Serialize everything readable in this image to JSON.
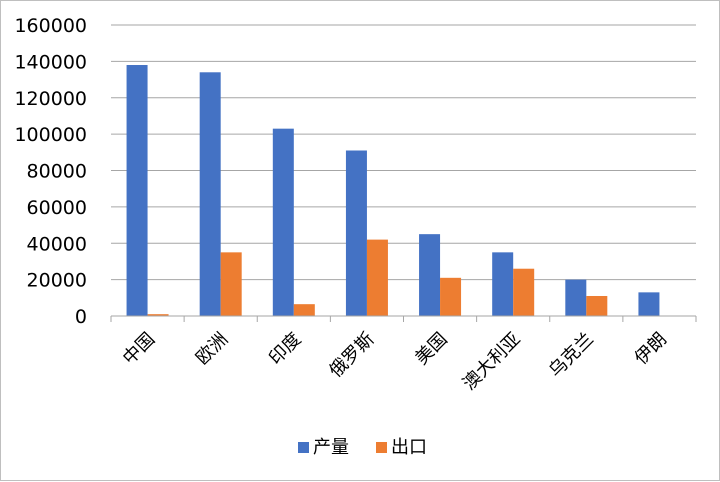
{
  "chart_data": {
    "type": "bar",
    "categories": [
      "中国",
      "欧洲",
      "印度",
      "俄罗斯",
      "美国",
      "澳大利亚",
      "乌克兰",
      "伊朗"
    ],
    "series": [
      {
        "name": "产量",
        "color": "#4472C4",
        "values": [
          138000,
          134000,
          103000,
          91000,
          45000,
          35000,
          20000,
          13000
        ]
      },
      {
        "name": "出口",
        "color": "#ED7D31",
        "values": [
          1000,
          35000,
          6500,
          42000,
          21000,
          26000,
          11000,
          0
        ]
      }
    ],
    "ylim": [
      0,
      160000
    ],
    "yticks": [
      0,
      20000,
      40000,
      60000,
      80000,
      100000,
      120000,
      140000,
      160000
    ],
    "grid": true,
    "legend_position": "bottom",
    "title": "",
    "xlabel": "",
    "ylabel": ""
  }
}
